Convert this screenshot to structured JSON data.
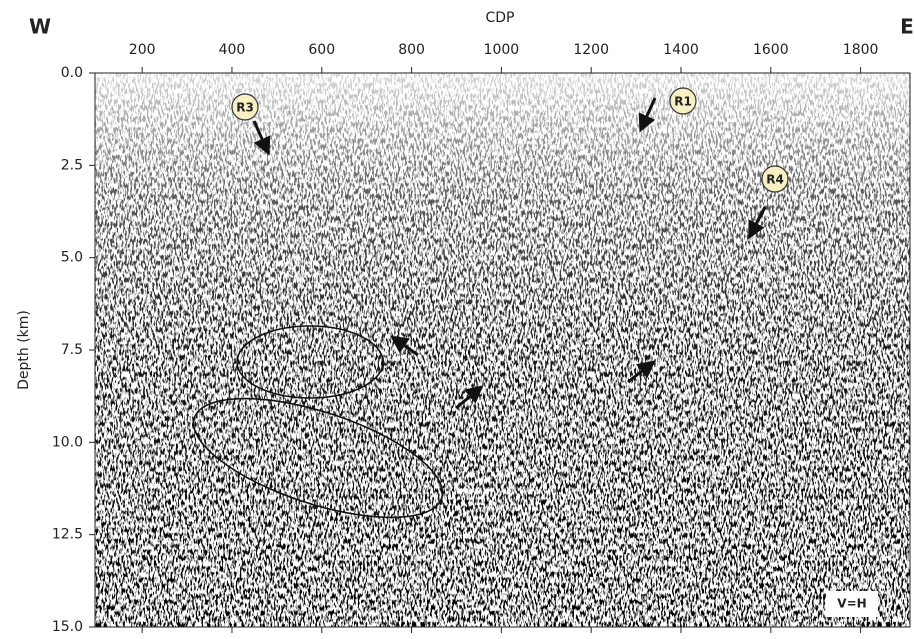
{
  "chart_data": {
    "type": "seismic-section",
    "x_label": "CDP",
    "y_label": "Depth (km)",
    "west": "W",
    "east": "E",
    "scale_note": "V=H",
    "markers": [
      "R3",
      "R1",
      "R4"
    ],
    "xlim": [
      95,
      1910
    ],
    "xticks": [
      200,
      400,
      600,
      800,
      1000,
      1200,
      1400,
      1600,
      1800
    ],
    "ylim": [
      0,
      15
    ],
    "yticks": [
      {
        "value": 0,
        "label": "0.0"
      },
      {
        "value": 2.5,
        "label": "2.5"
      },
      {
        "value": 5,
        "label": "5.0"
      },
      {
        "value": 7.5,
        "label": "7.5"
      },
      {
        "value": 10,
        "label": "10.0"
      },
      {
        "value": 12.5,
        "label": "12.5"
      },
      {
        "value": 15,
        "label": "15.0"
      }
    ]
  }
}
